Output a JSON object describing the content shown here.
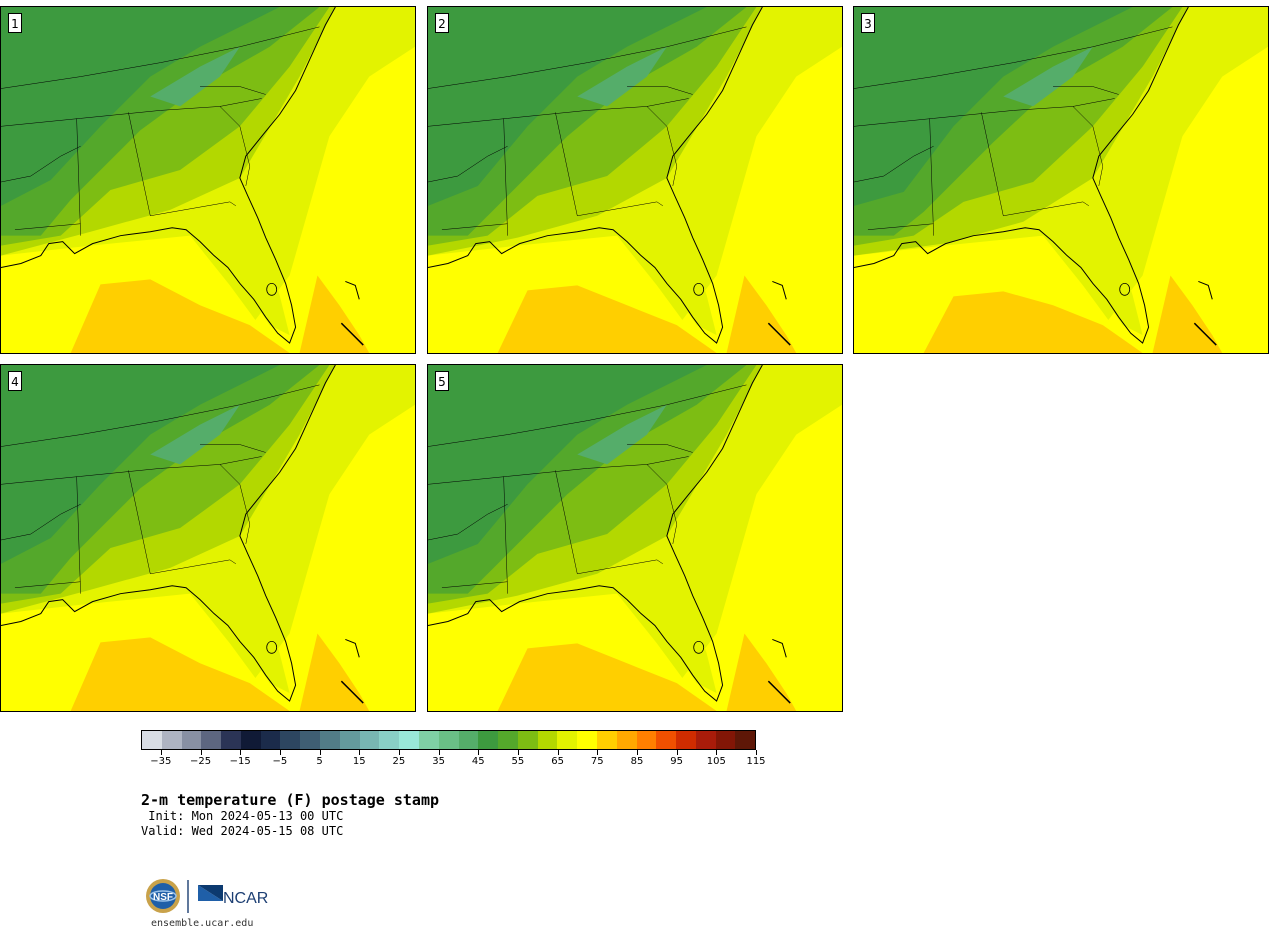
{
  "panels": [
    {
      "label": "1"
    },
    {
      "label": "2"
    },
    {
      "label": "3"
    },
    {
      "label": "4"
    },
    {
      "label": "5"
    }
  ],
  "colorbar": {
    "colors": [
      "#d8dde4",
      "#aeb4c2",
      "#8890a3",
      "#5d6680",
      "#2b3456",
      "#101a36",
      "#1b2b4a",
      "#2d4660",
      "#3f5e73",
      "#527c87",
      "#649a9c",
      "#78b6b2",
      "#89d0c6",
      "#99e8d8",
      "#7fd0a5",
      "#6abf86",
      "#55ad6a",
      "#3d9a3f",
      "#54a82b",
      "#7dbd13",
      "#b3d800",
      "#e3f300",
      "#ffff00",
      "#ffcf00",
      "#ffa800",
      "#ff7f00",
      "#f05000",
      "#d02c00",
      "#a81c0a",
      "#821606",
      "#5e1707"
    ],
    "tick_labels": [
      "−35",
      "−25",
      "−15",
      "−5",
      "5",
      "15",
      "25",
      "35",
      "45",
      "55",
      "65",
      "75",
      "85",
      "95",
      "105",
      "115"
    ],
    "min": -40,
    "max": 115,
    "step": 5
  },
  "title": "2-m temperature (F) postage stamp",
  "init": " Init: Mon 2024-05-13 00 UTC",
  "valid": "Valid: Wed 2024-05-15 08 UTC",
  "footer": {
    "nsf_logo_text": "NSF",
    "ncar_logo_text": "NCAR",
    "site": "ensemble.ucar.edu"
  }
}
